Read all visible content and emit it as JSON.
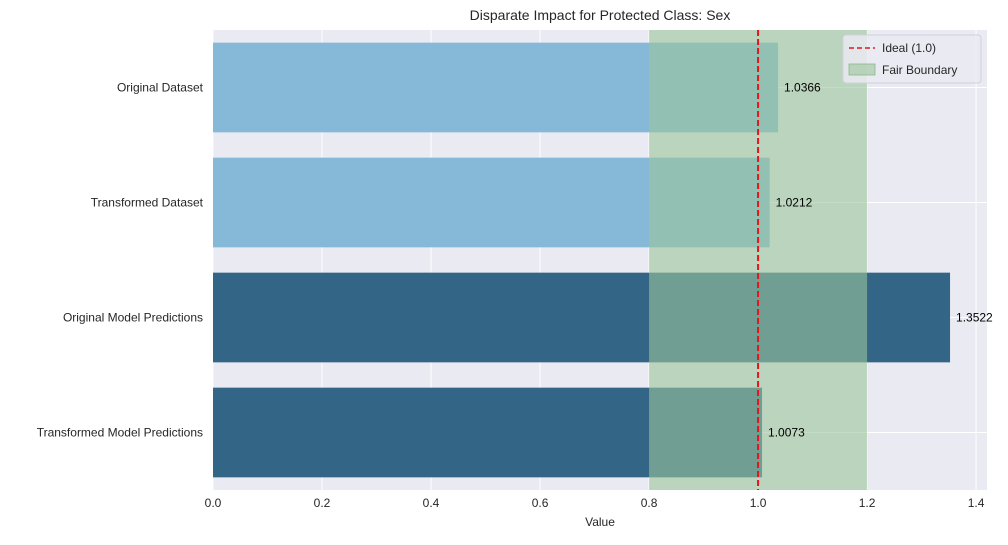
{
  "chart_data": {
    "type": "bar",
    "orientation": "horizontal",
    "title": "Disparate Impact for Protected Class: Sex",
    "xlabel": "Value",
    "ylabel": "",
    "xlim": [
      0,
      1.42
    ],
    "xticks": [
      "0.0",
      "0.2",
      "0.4",
      "0.6",
      "0.8",
      "1.0",
      "1.2",
      "1.4"
    ],
    "xtick_values": [
      0,
      0.2,
      0.4,
      0.6,
      0.8,
      1.0,
      1.2,
      1.4
    ],
    "grid": true,
    "categories": [
      "Original Dataset",
      "Transformed Dataset",
      "Original Model Predictions",
      "Transformed Model Predictions"
    ],
    "values": [
      1.0366,
      1.0212,
      1.3522,
      1.0073
    ],
    "value_labels": [
      "1.0366",
      "1.0212",
      "1.3522",
      "1.0073"
    ],
    "bar_colors": [
      "#86b9d7",
      "#86b9d7",
      "#336587",
      "#336587"
    ],
    "reference_line": {
      "label": "Ideal (1.0)",
      "value": 1.0,
      "color": "#e3161c",
      "style": "dashed"
    },
    "fair_boundary": {
      "label": "Fair Boundary",
      "range": [
        0.8,
        1.2
      ],
      "color": "#9bc49b",
      "opacity": 0.6
    },
    "legend_position": "top-right",
    "background": "#eaeaf2"
  }
}
